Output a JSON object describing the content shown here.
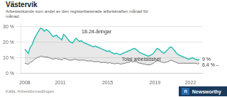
{
  "chart_data": {
    "type": "line",
    "title": "Västervik",
    "subtitle": "Arbetssökande som andel av den registerbaserade arbetskraften månad för\nmånad.",
    "source": "Källa: Arbetsförmedlingen",
    "badge": [
      "n",
      "Newsworthy"
    ],
    "x": [
      2008.0,
      2008.149,
      2008.298,
      2008.447,
      2008.596,
      2008.7449,
      2008.8939,
      2009.0429,
      2009.1919,
      2009.3409,
      2009.4899,
      2009.6389,
      2009.7879,
      2009.9369,
      2010.0859,
      2010.2348,
      2010.3838,
      2010.5328,
      2010.6818,
      2010.8308,
      2010.9798,
      2011.1288,
      2011.2778,
      2011.4268,
      2011.5758,
      2011.7247,
      2011.8737,
      2012.0227,
      2012.1717,
      2012.3207,
      2012.4697,
      2012.6187,
      2012.7677,
      2012.9167,
      2013.0657,
      2013.2146,
      2013.3636,
      2013.5126,
      2013.6616,
      2013.8106,
      2013.9596,
      2014.1086,
      2014.2576,
      2014.4066,
      2014.5556,
      2014.7045,
      2014.8535,
      2015.0025,
      2015.1515,
      2015.3005,
      2015.4495,
      2015.5985,
      2015.7475,
      2015.8965,
      2016.0455,
      2016.1944,
      2016.3434,
      2016.4924,
      2016.6414,
      2016.7904,
      2016.9394,
      2017.0884,
      2017.2374,
      2017.3864,
      2017.5354,
      2017.6843,
      2017.8333,
      2017.9823,
      2018.1313,
      2018.2803,
      2018.4293,
      2018.5783,
      2018.7273,
      2018.8763,
      2019.0253,
      2019.1742,
      2019.3232,
      2019.4722,
      2019.6212,
      2019.7702,
      2019.9192,
      2020.0682,
      2020.2172,
      2020.3662,
      2020.5152,
      2020.6641,
      2020.8131,
      2020.9621,
      2021.1111,
      2021.2601,
      2021.4091,
      2021.5581,
      2021.7071,
      2021.8561,
      2022.0051,
      2022.154,
      2022.303,
      2022.452,
      2022.601,
      2022.75
    ],
    "series": [
      {
        "color": "#777777",
        "values": [
          6.5,
          6.2,
          5.8,
          7.0,
          7.5,
          8.5,
          9.5,
          10.0,
          10.5,
          11.0,
          11.0,
          10.5,
          10.5,
          10.5,
          10.0,
          9.5,
          9.0,
          9.5,
          9.5,
          9.0,
          9.0,
          8.5,
          9.5,
          9.5,
          9.0,
          8.5,
          8.5,
          8.5,
          9.0,
          9.0,
          8.5,
          8.5,
          8.5,
          8.5,
          8.5,
          8.0,
          8.0,
          8.0,
          8.0,
          7.5,
          7.5,
          7.5,
          7.5,
          7.0,
          7.0,
          7.0,
          7.0,
          6.5,
          7.0,
          6.5,
          6.5,
          6.0,
          6.5,
          6.5,
          6.0,
          6.0,
          6.5,
          6.5,
          7.0,
          7.0,
          7.5,
          7.5,
          7.5,
          7.5,
          7.0,
          6.5,
          6.5,
          6.0,
          6.0,
          5.5,
          5.5,
          5.5,
          6.0,
          6.5,
          7.5,
          8.0,
          8.0,
          7.5,
          7.0,
          7.0,
          7.0,
          7.5,
          8.0,
          8.5,
          8.0,
          7.5,
          7.0,
          6.5,
          6.5,
          6.5,
          6.5,
          6.5,
          6.5,
          6.5,
          6.5,
          6.5,
          6.5,
          6.5,
          6.0,
          6.4
        ]
      },
      {
        "color": "#2bbfb3",
        "values": [
          15.5,
          14.2,
          12.8,
          16.5,
          18.0,
          21.0,
          23.5,
          25.5,
          27.5,
          29.0,
          28.5,
          27.0,
          28.0,
          27.5,
          26.5,
          25.0,
          23.5,
          24.0,
          24.5,
          23.0,
          22.5,
          21.5,
          25.0,
          24.0,
          22.5,
          21.0,
          20.0,
          19.5,
          21.0,
          22.5,
          21.5,
          20.5,
          21.0,
          20.0,
          19.5,
          19.0,
          18.5,
          18.0,
          17.5,
          17.0,
          17.5,
          17.0,
          16.5,
          16.0,
          15.5,
          15.0,
          14.5,
          14.0,
          14.5,
          13.5,
          13.0,
          12.5,
          13.0,
          12.5,
          12.0,
          12.5,
          13.0,
          13.5,
          14.0,
          14.5,
          15.0,
          15.5,
          16.0,
          15.5,
          14.5,
          13.5,
          13.0,
          12.5,
          12.0,
          11.5,
          11.0,
          11.5,
          12.0,
          13.0,
          14.5,
          16.0,
          15.5,
          14.5,
          13.5,
          13.0,
          14.0,
          15.0,
          16.5,
          17.0,
          16.0,
          14.5,
          13.0,
          12.0,
          11.5,
          11.0,
          10.5,
          10.0,
          9.5,
          9.0,
          9.5,
          10.0,
          9.5,
          9.0,
          8.5,
          9.0
        ]
      }
    ],
    "annotations": [
      {
        "text": "18-24-åringar",
        "x": 2012.8,
        "y": 24.5
      },
      {
        "text": "Total arbetslöshet",
        "x": 2016.2,
        "y": 6.8
      },
      {
        "text": "9 %",
        "x": 2022.75,
        "y": 9.0
      },
      {
        "text": "6,4 % –",
        "x": 2022.75,
        "y": 6.4
      }
    ],
    "xlim": [
      2007.7,
      2023.05
    ],
    "xticks": [
      2008,
      2011,
      2015,
      2019,
      2022
    ],
    "ylim": [
      0,
      32
    ],
    "yticks": [
      {
        "value": 0,
        "label": "0 %"
      },
      {
        "value": 10,
        "label": "10 %"
      },
      {
        "value": 20,
        "label": "20 %"
      },
      {
        "value": 30,
        "label": "30 %"
      }
    ],
    "grid": true
  }
}
